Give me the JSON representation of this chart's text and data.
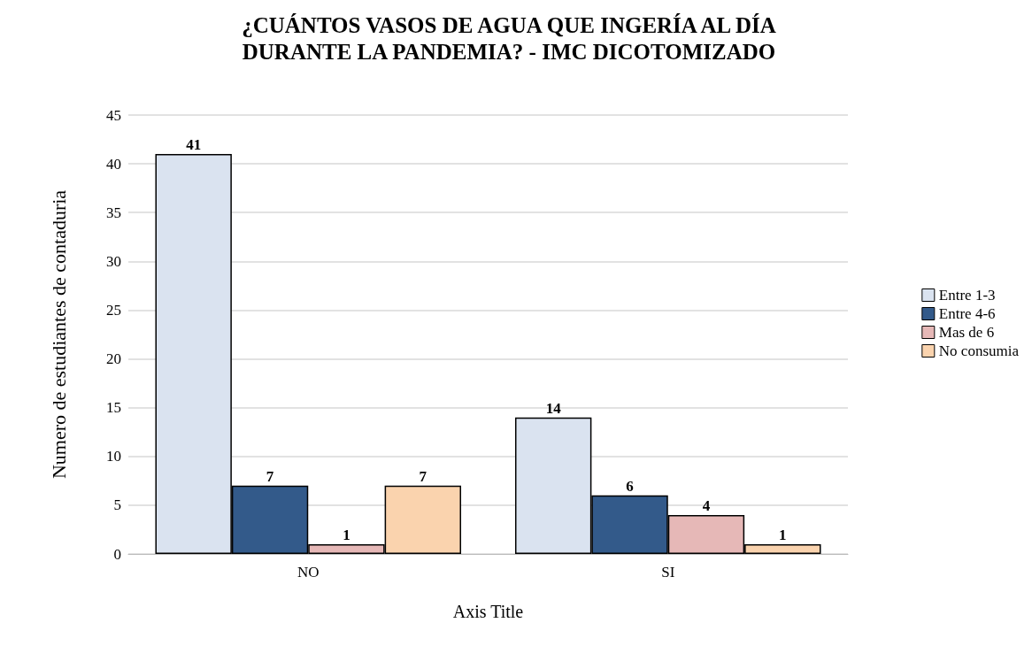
{
  "chart_data": {
    "type": "bar",
    "title": "¿CUÁNTOS VASOS DE AGUA QUE INGERÍA AL DÍA\nDURANTE LA PANDEMIA? - IMC DICOTOMIZADO",
    "xlabel": "Axis Title",
    "ylabel": "Numero de estudiantes de contaduria",
    "categories": [
      "NO",
      "SI"
    ],
    "series": [
      {
        "name": "Entre 1-3",
        "color": "#dae3f0",
        "values": [
          41,
          14
        ]
      },
      {
        "name": "Entre 4-6",
        "color": "#335a8a",
        "values": [
          7,
          6
        ]
      },
      {
        "name": "Mas de 6",
        "color": "#e6b8b7",
        "values": [
          1,
          4
        ]
      },
      {
        "name": "No consumia",
        "color": "#fad3ae",
        "values": [
          7,
          1
        ]
      }
    ],
    "ylim": [
      0,
      45
    ],
    "yticks": [
      0,
      5,
      10,
      15,
      20,
      25,
      30,
      35,
      40,
      45
    ],
    "grid": "y",
    "legend": "right",
    "data_labels": true
  }
}
